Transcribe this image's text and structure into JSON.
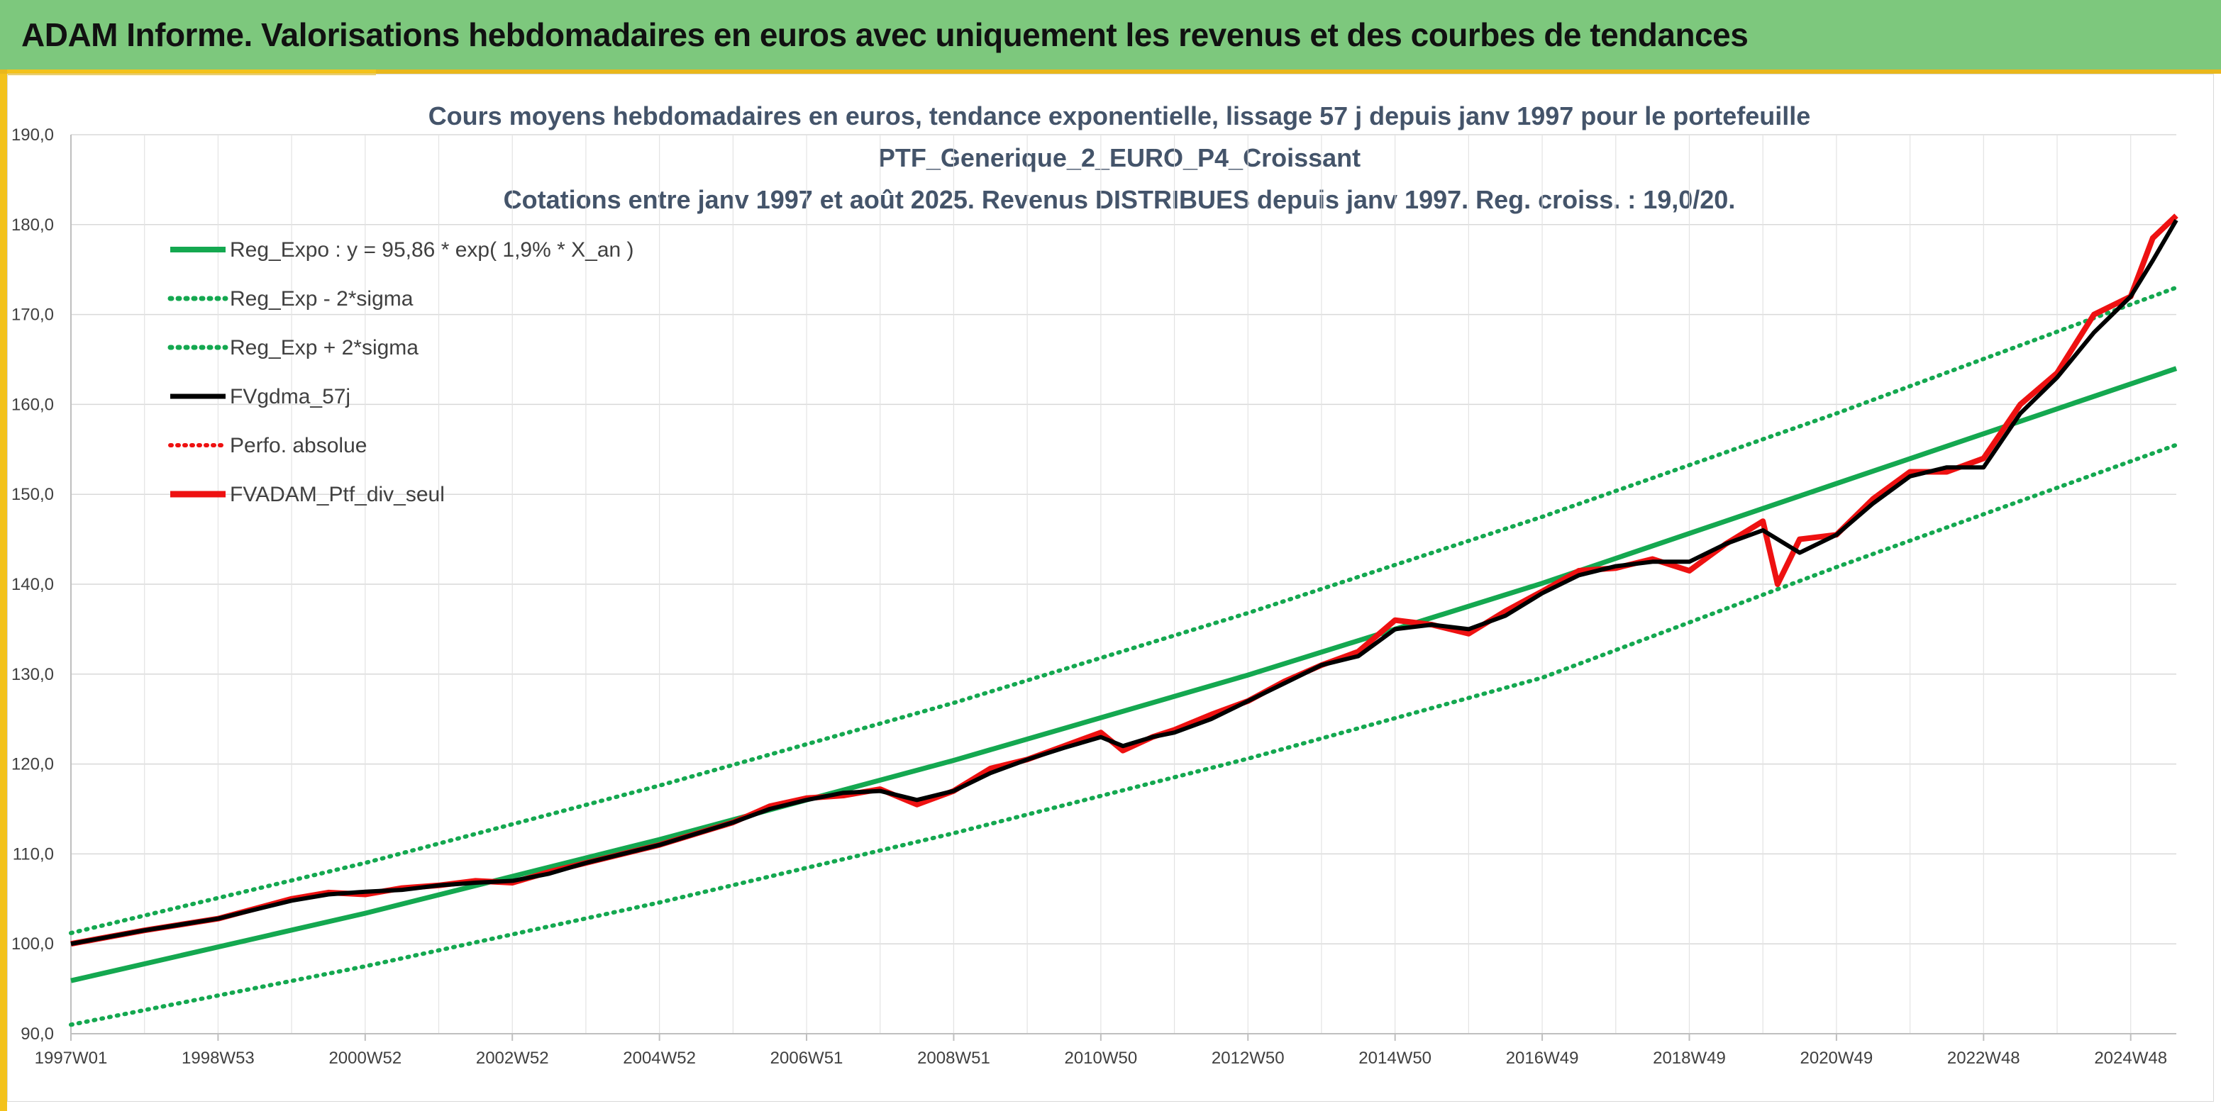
{
  "banner": {
    "title": "ADAM Informe. Valorisations hebdomadaires en euros avec uniquement les revenus et des courbes de tendances"
  },
  "colors": {
    "banner_bg": "#7dc87d",
    "accent": "#f3c21c",
    "trend_green": "#14a850",
    "ptf_red": "#ee1111",
    "smooth_black": "#000000",
    "title_text": "#44546a"
  },
  "chart_data": {
    "type": "line",
    "title_lines": [
      "Cours moyens hebdomadaires en euros, tendance exponentielle, lissage 57 j depuis janv 1997 pour le portefeuille",
      "PTF_Generique_2_EURO_P4_Croissant",
      "Cotations entre janv 1997 et août 2025. Revenus DISTRIBUES depuis janv 1997. Reg. croiss. : 19,0/20."
    ],
    "x_ticks": [
      "1997W01",
      "1998W53",
      "2000W52",
      "2002W52",
      "2004W52",
      "2006W51",
      "2008W51",
      "2010W50",
      "2012W50",
      "2014W50",
      "2016W49",
      "2018W49",
      "2020W49",
      "2022W48",
      "2024W48"
    ],
    "x_tick_years": [
      1997.0,
      1999.0,
      2001.0,
      2003.0,
      2005.0,
      2007.0,
      2009.0,
      2011.0,
      2013.0,
      2015.0,
      2017.0,
      2019.0,
      2021.0,
      2023.0,
      2025.0
    ],
    "x_range": [
      1997.0,
      2025.62
    ],
    "ylim": [
      90,
      190
    ],
    "y_ticks": [
      90,
      100,
      110,
      120,
      130,
      140,
      150,
      160,
      170,
      180,
      190
    ],
    "y_tick_labels": [
      "90,0",
      "100,0",
      "110,0",
      "120,0",
      "130,0",
      "140,0",
      "150,0",
      "160,0",
      "170,0",
      "180,0",
      "190,0"
    ],
    "grid": true,
    "legend_position": "top-left",
    "series": [
      {
        "name": "Reg_Expo : y = 95,86 * exp( 1,9% *  X_an )",
        "style": "solid",
        "color": "#14a850",
        "x": [
          1997.0,
          2001.0,
          2005.0,
          2009.0,
          2013.0,
          2017.0,
          2021.0,
          2025.62
        ],
        "y": [
          95.9,
          103.4,
          111.6,
          120.4,
          129.9,
          140.1,
          151.2,
          164.0
        ]
      },
      {
        "name": "Reg_Exp - 2*sigma",
        "style": "dotted",
        "color": "#14a850",
        "x": [
          1997.0,
          2001.0,
          2005.0,
          2009.0,
          2013.0,
          2017.0,
          2021.0,
          2025.62
        ],
        "y": [
          91.0,
          97.5,
          104.6,
          112.3,
          120.6,
          129.6,
          141.9,
          155.5
        ]
      },
      {
        "name": "Reg_Exp + 2*sigma",
        "style": "dotted",
        "color": "#14a850",
        "x": [
          1997.0,
          2001.0,
          2005.0,
          2009.0,
          2013.0,
          2017.0,
          2021.0,
          2025.62
        ],
        "y": [
          101.2,
          109.0,
          117.6,
          126.8,
          136.8,
          147.5,
          159.0,
          173.0
        ]
      },
      {
        "name": "FVgdma_57j",
        "style": "solid",
        "color": "#000000",
        "x": [
          1997.0,
          1998.0,
          1999.0,
          2000.0,
          2000.5,
          2001.0,
          2001.5,
          2002.0,
          2002.5,
          2003.0,
          2003.5,
          2004.0,
          2005.0,
          2006.0,
          2006.5,
          2007.0,
          2007.5,
          2008.0,
          2008.5,
          2009.0,
          2009.5,
          2010.0,
          2010.5,
          2011.0,
          2011.3,
          2011.7,
          2012.0,
          2012.5,
          2013.0,
          2013.5,
          2014.0,
          2014.5,
          2015.0,
          2015.5,
          2016.0,
          2016.5,
          2017.0,
          2017.5,
          2018.0,
          2018.5,
          2019.0,
          2019.5,
          2020.0,
          2020.5,
          2021.0,
          2021.5,
          2022.0,
          2022.5,
          2023.0,
          2023.5,
          2024.0,
          2024.5,
          2025.0,
          2025.3,
          2025.62
        ],
        "y": [
          100.0,
          101.5,
          102.8,
          104.8,
          105.5,
          105.8,
          106.0,
          106.5,
          106.8,
          107.0,
          107.8,
          109.0,
          111.0,
          113.5,
          115.0,
          116.0,
          116.8,
          117.0,
          116.0,
          117.0,
          119.0,
          120.5,
          121.8,
          123.0,
          122.0,
          123.0,
          123.5,
          125.0,
          127.0,
          129.0,
          131.0,
          132.0,
          135.0,
          135.5,
          135.0,
          136.5,
          139.0,
          141.0,
          142.0,
          142.5,
          142.5,
          144.5,
          146.0,
          143.5,
          145.5,
          149.0,
          152.0,
          153.0,
          153.0,
          159.0,
          163.0,
          168.0,
          172.0,
          176.0,
          180.5
        ]
      },
      {
        "name": "Perfo. absolue",
        "style": "dotted",
        "color": "#ee1111",
        "x": [],
        "y": []
      },
      {
        "name": "FVADAM_Ptf_div_seul",
        "style": "solid",
        "color": "#ee1111",
        "x": [
          1997.0,
          1998.0,
          1999.0,
          2000.0,
          2000.5,
          2001.0,
          2001.5,
          2002.0,
          2002.5,
          2003.0,
          2003.5,
          2004.0,
          2005.0,
          2006.0,
          2006.5,
          2007.0,
          2007.5,
          2008.0,
          2008.5,
          2009.0,
          2009.5,
          2010.0,
          2010.5,
          2011.0,
          2011.3,
          2011.7,
          2012.0,
          2012.5,
          2013.0,
          2013.5,
          2014.0,
          2014.5,
          2015.0,
          2015.5,
          2016.0,
          2016.5,
          2017.0,
          2017.5,
          2018.0,
          2018.5,
          2019.0,
          2019.5,
          2020.0,
          2020.2,
          2020.5,
          2021.0,
          2021.5,
          2022.0,
          2022.5,
          2023.0,
          2023.5,
          2024.0,
          2024.5,
          2025.0,
          2025.3,
          2025.62
        ],
        "y": [
          100.0,
          101.5,
          102.8,
          105.0,
          105.7,
          105.5,
          106.2,
          106.5,
          107.0,
          106.8,
          108.0,
          109.0,
          111.0,
          113.5,
          115.3,
          116.2,
          116.5,
          117.2,
          115.5,
          117.0,
          119.5,
          120.5,
          122.0,
          123.5,
          121.5,
          123.0,
          123.8,
          125.5,
          127.0,
          129.2,
          131.0,
          132.5,
          136.0,
          135.5,
          134.5,
          137.0,
          139.2,
          141.5,
          141.8,
          142.8,
          141.5,
          144.5,
          147.0,
          140.0,
          145.0,
          145.5,
          149.5,
          152.5,
          152.5,
          154.0,
          160.0,
          163.5,
          170.0,
          172.0,
          178.5,
          181.0
        ]
      }
    ]
  }
}
